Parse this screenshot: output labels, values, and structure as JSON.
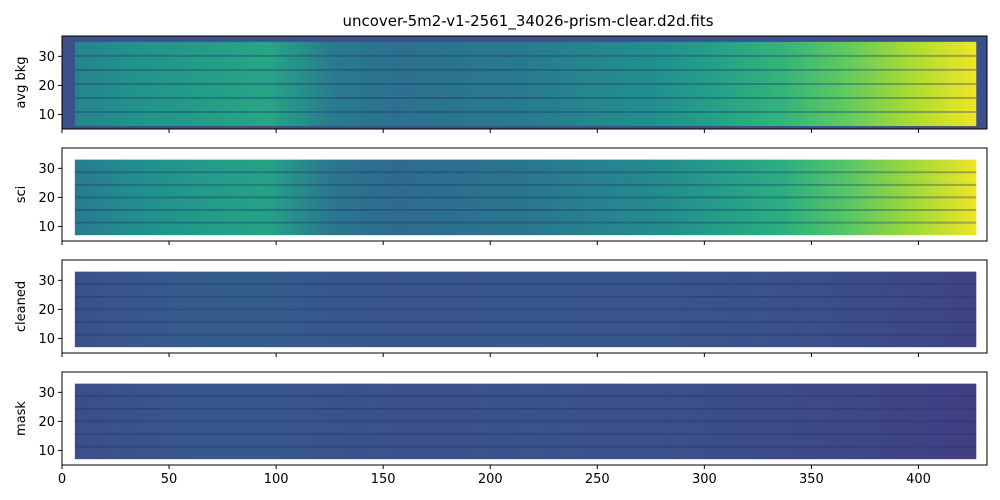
{
  "figure": {
    "title": "uncover-5m2-v1-2561_34026-prism-clear.d2d.fits"
  },
  "chart_data": [
    {
      "type": "heatmap",
      "ylabel": "avg bkg",
      "xlim": [
        0,
        432
      ],
      "ylim": [
        5,
        37
      ],
      "yticks": [
        10,
        20,
        30
      ],
      "xticks": [
        0,
        50,
        100,
        150,
        200,
        250,
        300,
        350,
        400
      ],
      "colormap": "viridis",
      "data_x_range": [
        6,
        427
      ],
      "data_y_range": [
        6,
        35
      ],
      "background_color": "#3b4f8a",
      "profile": [
        0.45,
        0.52,
        0.56,
        0.6,
        0.42,
        0.38,
        0.4,
        0.42,
        0.46,
        0.5,
        0.58,
        0.66,
        0.76,
        0.88,
        0.98
      ]
    },
    {
      "type": "heatmap",
      "ylabel": "sci",
      "xlim": [
        0,
        432
      ],
      "ylim": [
        5,
        37
      ],
      "yticks": [
        10,
        20,
        30
      ],
      "colormap": "viridis",
      "data_x_range": [
        6,
        427
      ],
      "data_y_range": [
        7,
        33
      ],
      "background_color": "#ffffff",
      "profile": [
        0.42,
        0.5,
        0.55,
        0.58,
        0.4,
        0.36,
        0.38,
        0.4,
        0.44,
        0.48,
        0.56,
        0.64,
        0.74,
        0.86,
        0.98
      ]
    },
    {
      "type": "heatmap",
      "ylabel": "cleaned",
      "xlim": [
        0,
        432
      ],
      "ylim": [
        5,
        37
      ],
      "yticks": [
        10,
        20,
        30
      ],
      "colormap": "viridis",
      "data_x_range": [
        6,
        427
      ],
      "data_y_range": [
        7,
        33
      ],
      "background_color": "#ffffff",
      "profile": [
        0.25,
        0.28,
        0.3,
        0.3,
        0.28,
        0.27,
        0.27,
        0.28,
        0.27,
        0.27,
        0.26,
        0.25,
        0.24,
        0.22,
        0.2
      ]
    },
    {
      "type": "heatmap",
      "ylabel": "mask",
      "xlim": [
        0,
        432
      ],
      "ylim": [
        5,
        37
      ],
      "yticks": [
        10,
        20,
        30
      ],
      "colormap": "viridis",
      "data_x_range": [
        6,
        427
      ],
      "data_y_range": [
        7,
        33
      ],
      "background_color": "#ffffff",
      "profile": [
        0.24,
        0.26,
        0.28,
        0.28,
        0.26,
        0.25,
        0.25,
        0.26,
        0.25,
        0.25,
        0.24,
        0.23,
        0.22,
        0.2,
        0.19
      ]
    }
  ]
}
